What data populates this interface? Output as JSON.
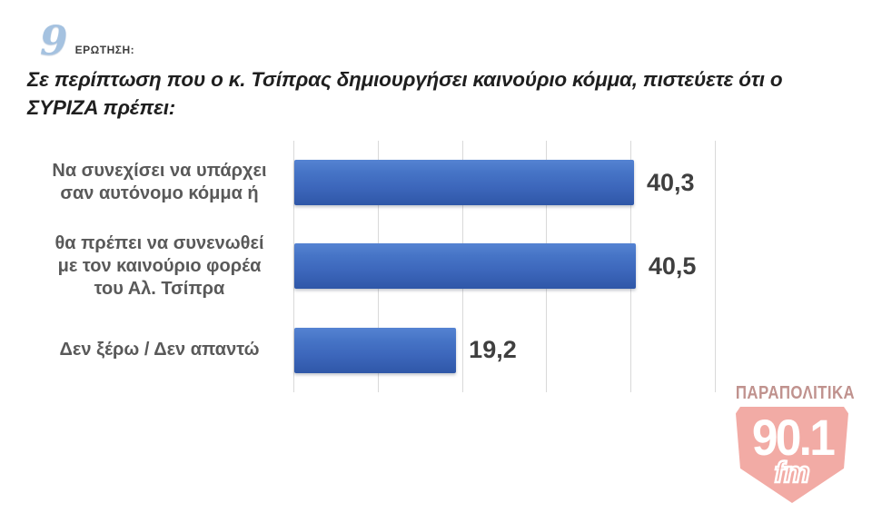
{
  "question": {
    "number": "9",
    "label": "ΕΡΩΤΗΣΗ:"
  },
  "title": "Σε περίπτωση που ο κ. Τσίπρας δημιουργήσει καινούριο κόμμα, πιστεύετε ότι ο ΣΥΡΙΖΑ πρέπει:",
  "chart_data": {
    "type": "bar",
    "orientation": "horizontal",
    "categories": [
      "Να συνεχίσει να υπάρχει σαν αυτόνομο κόμμα ή",
      "θα πρέπει να συνενωθεί με τον καινούριο φορέα του Αλ. Τσίπρα",
      "Δεν ξέρω / Δεν απαντώ"
    ],
    "categories_lines": [
      [
        "Να συνεχίσει να υπάρχει",
        "σαν αυτόνομο κόμμα ή"
      ],
      [
        "θα πρέπει να συνενωθεί",
        "με τον καινούριο φορέα",
        "του Αλ. Τσίπρα"
      ],
      [
        "Δεν ξέρω / Δεν απαντώ"
      ]
    ],
    "values": [
      40.3,
      40.5,
      19.2
    ],
    "value_labels": [
      "40,3",
      "40,5",
      "19,2"
    ],
    "xlim": [
      0,
      50
    ],
    "gridlines": [
      0,
      10,
      20,
      30,
      40,
      50
    ],
    "grid": true,
    "legend": "none",
    "bar_color": "#3c66bb",
    "gridline_color": "#d9d9d9",
    "label_color": "#595959",
    "value_color": "#3f3f3f"
  },
  "logo": {
    "station": "ΠΑΡΑΠΟΛΙΤΙΚΑ",
    "frequency": "90.1",
    "band": "fm",
    "shield_color": "#f2aba5",
    "station_color": "#c0928e"
  },
  "colors": {
    "background": "#ffffff",
    "title": "#1f1f1f",
    "question_number": "#a5c2e0"
  }
}
